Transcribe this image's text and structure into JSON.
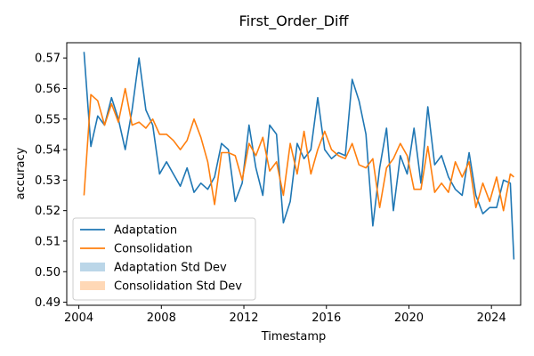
{
  "chart_data": {
    "type": "line",
    "title": "First_Order_Diff",
    "xlabel": "Timestamp",
    "ylabel": "accuracy",
    "xlim": [
      "2003-06-01",
      "2025-06-01"
    ],
    "ylim": [
      0.489,
      0.575
    ],
    "x_ticks": [
      "2004",
      "2008",
      "2012",
      "2016",
      "2020",
      "2024"
    ],
    "y_ticks": [
      "0.49",
      "0.50",
      "0.51",
      "0.52",
      "0.53",
      "0.54",
      "0.55",
      "0.56",
      "0.57"
    ],
    "grid": false,
    "legend_position": "lower-left",
    "series": [
      {
        "name": "Adaptation",
        "color": "#1f77b4",
        "points": [
          [
            "2004-04-01",
            0.572
          ],
          [
            "2004-08-01",
            0.541
          ],
          [
            "2004-12-01",
            0.551
          ],
          [
            "2005-04-01",
            0.548
          ],
          [
            "2005-08-01",
            0.557
          ],
          [
            "2005-12-01",
            0.55
          ],
          [
            "2006-04-01",
            0.54
          ],
          [
            "2006-08-01",
            0.553
          ],
          [
            "2006-12-01",
            0.57
          ],
          [
            "2007-04-01",
            0.553
          ],
          [
            "2007-08-01",
            0.548
          ],
          [
            "2007-12-01",
            0.532
          ],
          [
            "2008-04-01",
            0.536
          ],
          [
            "2008-08-01",
            0.532
          ],
          [
            "2008-12-01",
            0.528
          ],
          [
            "2009-04-01",
            0.534
          ],
          [
            "2009-08-01",
            0.526
          ],
          [
            "2009-12-01",
            0.529
          ],
          [
            "2010-04-01",
            0.527
          ],
          [
            "2010-08-01",
            0.531
          ],
          [
            "2010-12-01",
            0.542
          ],
          [
            "2011-04-01",
            0.54
          ],
          [
            "2011-08-01",
            0.523
          ],
          [
            "2011-12-01",
            0.529
          ],
          [
            "2012-04-01",
            0.548
          ],
          [
            "2012-08-01",
            0.534
          ],
          [
            "2012-12-01",
            0.525
          ],
          [
            "2013-04-01",
            0.548
          ],
          [
            "2013-08-01",
            0.545
          ],
          [
            "2013-12-01",
            0.516
          ],
          [
            "2014-04-01",
            0.523
          ],
          [
            "2014-08-01",
            0.542
          ],
          [
            "2014-12-01",
            0.537
          ],
          [
            "2015-04-01",
            0.54
          ],
          [
            "2015-08-01",
            0.557
          ],
          [
            "2015-12-01",
            0.54
          ],
          [
            "2016-04-01",
            0.537
          ],
          [
            "2016-08-01",
            0.539
          ],
          [
            "2016-12-01",
            0.538
          ],
          [
            "2017-04-01",
            0.563
          ],
          [
            "2017-08-01",
            0.556
          ],
          [
            "2017-12-01",
            0.545
          ],
          [
            "2018-04-01",
            0.515
          ],
          [
            "2018-08-01",
            0.534
          ],
          [
            "2018-12-01",
            0.547
          ],
          [
            "2019-04-01",
            0.52
          ],
          [
            "2019-08-01",
            0.538
          ],
          [
            "2019-12-01",
            0.532
          ],
          [
            "2020-04-01",
            0.547
          ],
          [
            "2020-08-01",
            0.529
          ],
          [
            "2020-12-01",
            0.554
          ],
          [
            "2021-04-01",
            0.535
          ],
          [
            "2021-08-01",
            0.538
          ],
          [
            "2021-12-01",
            0.531
          ],
          [
            "2022-04-01",
            0.527
          ],
          [
            "2022-08-01",
            0.525
          ],
          [
            "2022-12-01",
            0.539
          ],
          [
            "2023-04-01",
            0.525
          ],
          [
            "2023-08-01",
            0.519
          ],
          [
            "2023-12-01",
            0.521
          ],
          [
            "2024-04-01",
            0.521
          ],
          [
            "2024-08-01",
            0.53
          ],
          [
            "2024-12-01",
            0.529
          ],
          [
            "2025-02-01",
            0.504
          ]
        ]
      },
      {
        "name": "Consolidation",
        "color": "#ff7f0e",
        "points": [
          [
            "2004-04-01",
            0.525
          ],
          [
            "2004-08-01",
            0.558
          ],
          [
            "2004-12-01",
            0.556
          ],
          [
            "2005-04-01",
            0.548
          ],
          [
            "2005-08-01",
            0.555
          ],
          [
            "2005-12-01",
            0.549
          ],
          [
            "2006-04-01",
            0.56
          ],
          [
            "2006-08-01",
            0.548
          ],
          [
            "2006-12-01",
            0.549
          ],
          [
            "2007-04-01",
            0.547
          ],
          [
            "2007-08-01",
            0.55
          ],
          [
            "2007-12-01",
            0.545
          ],
          [
            "2008-04-01",
            0.545
          ],
          [
            "2008-08-01",
            0.543
          ],
          [
            "2008-12-01",
            0.54
          ],
          [
            "2009-04-01",
            0.543
          ],
          [
            "2009-08-01",
            0.55
          ],
          [
            "2009-12-01",
            0.544
          ],
          [
            "2010-04-01",
            0.536
          ],
          [
            "2010-08-01",
            0.522
          ],
          [
            "2010-12-01",
            0.539
          ],
          [
            "2011-04-01",
            0.539
          ],
          [
            "2011-08-01",
            0.538
          ],
          [
            "2011-12-01",
            0.53
          ],
          [
            "2012-04-01",
            0.542
          ],
          [
            "2012-08-01",
            0.538
          ],
          [
            "2012-12-01",
            0.544
          ],
          [
            "2013-04-01",
            0.533
          ],
          [
            "2013-08-01",
            0.536
          ],
          [
            "2013-12-01",
            0.525
          ],
          [
            "2014-04-01",
            0.542
          ],
          [
            "2014-08-01",
            0.532
          ],
          [
            "2014-12-01",
            0.546
          ],
          [
            "2015-04-01",
            0.532
          ],
          [
            "2015-08-01",
            0.54
          ],
          [
            "2015-12-01",
            0.546
          ],
          [
            "2016-04-01",
            0.54
          ],
          [
            "2016-08-01",
            0.538
          ],
          [
            "2016-12-01",
            0.537
          ],
          [
            "2017-04-01",
            0.542
          ],
          [
            "2017-08-01",
            0.535
          ],
          [
            "2017-12-01",
            0.534
          ],
          [
            "2018-04-01",
            0.537
          ],
          [
            "2018-08-01",
            0.521
          ],
          [
            "2018-12-01",
            0.534
          ],
          [
            "2019-04-01",
            0.537
          ],
          [
            "2019-08-01",
            0.542
          ],
          [
            "2019-12-01",
            0.538
          ],
          [
            "2020-04-01",
            0.527
          ],
          [
            "2020-08-01",
            0.527
          ],
          [
            "2020-12-01",
            0.541
          ],
          [
            "2021-04-01",
            0.526
          ],
          [
            "2021-08-01",
            0.529
          ],
          [
            "2021-12-01",
            0.526
          ],
          [
            "2022-04-01",
            0.536
          ],
          [
            "2022-08-01",
            0.531
          ],
          [
            "2022-12-01",
            0.536
          ],
          [
            "2023-04-01",
            0.521
          ],
          [
            "2023-08-01",
            0.529
          ],
          [
            "2023-12-01",
            0.523
          ],
          [
            "2024-04-01",
            0.531
          ],
          [
            "2024-08-01",
            0.52
          ],
          [
            "2024-12-01",
            0.532
          ],
          [
            "2025-02-01",
            0.531
          ]
        ]
      }
    ],
    "legend_entries": [
      {
        "label": "Adaptation",
        "kind": "line",
        "color": "#1f77b4"
      },
      {
        "label": "Consolidation",
        "kind": "line",
        "color": "#ff7f0e"
      },
      {
        "label": "Adaptation Std Dev",
        "kind": "patch",
        "color": "#1f77b4"
      },
      {
        "label": "Consolidation Std Dev",
        "kind": "patch",
        "color": "#ff7f0e"
      }
    ]
  }
}
